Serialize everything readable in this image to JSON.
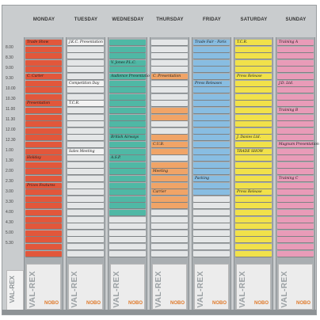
{
  "board": {
    "days": [
      "MONDAY",
      "TUESDAY",
      "WEDNESDAY",
      "THURSDAY",
      "FRIDAY",
      "SATURDAY",
      "SUNDAY"
    ],
    "times": [
      "8.00",
      "8.30",
      "9.00",
      "9.30",
      "10.00",
      "10.30",
      "11.00",
      "11.30",
      "12.00",
      "12.30",
      "1.00",
      "1.30",
      "2.00",
      "2.30",
      "3.00",
      "3.30",
      "4.00",
      "4.30",
      "5.00",
      "5.30"
    ],
    "colors": {
      "monday": "#e2573b",
      "tuesday": "#f3f3f3",
      "wednesday": "#4fb8a5",
      "thursday": "#f0a467",
      "friday": "#88bde2",
      "saturday": "#f1e14a",
      "sunday": "#e99bb8"
    },
    "brand_vertical": "VAL-REX",
    "brand_name": "NOBO",
    "entries": {
      "monday": [
        "Trade Show",
        "C. Carter",
        "Presentation",
        "Holiday",
        "Prices Features"
      ],
      "tuesday": [
        "J.K.C. Presentation",
        "Competition Day",
        "T.C.R.",
        "Sales Meeting"
      ],
      "wednesday": [
        "V. Jones P.L.C.",
        "Audience Presentation",
        "British Airways",
        "A.S.P."
      ],
      "thursday": [
        "C. Presentation",
        "C.U.B.",
        "Meeting",
        "Carrier"
      ],
      "friday": [
        "Trade Fair - Paris",
        "Press Releases",
        "Packing"
      ],
      "saturday": [
        "T.C.R.",
        "Press Release",
        "J. Davies Ltd.",
        "TRADE SHOW",
        "Press Release"
      ],
      "sunday": [
        "Training A",
        "J.D. Ltd.",
        "Training B",
        "Magnum Presentation",
        "Training C"
      ]
    }
  }
}
